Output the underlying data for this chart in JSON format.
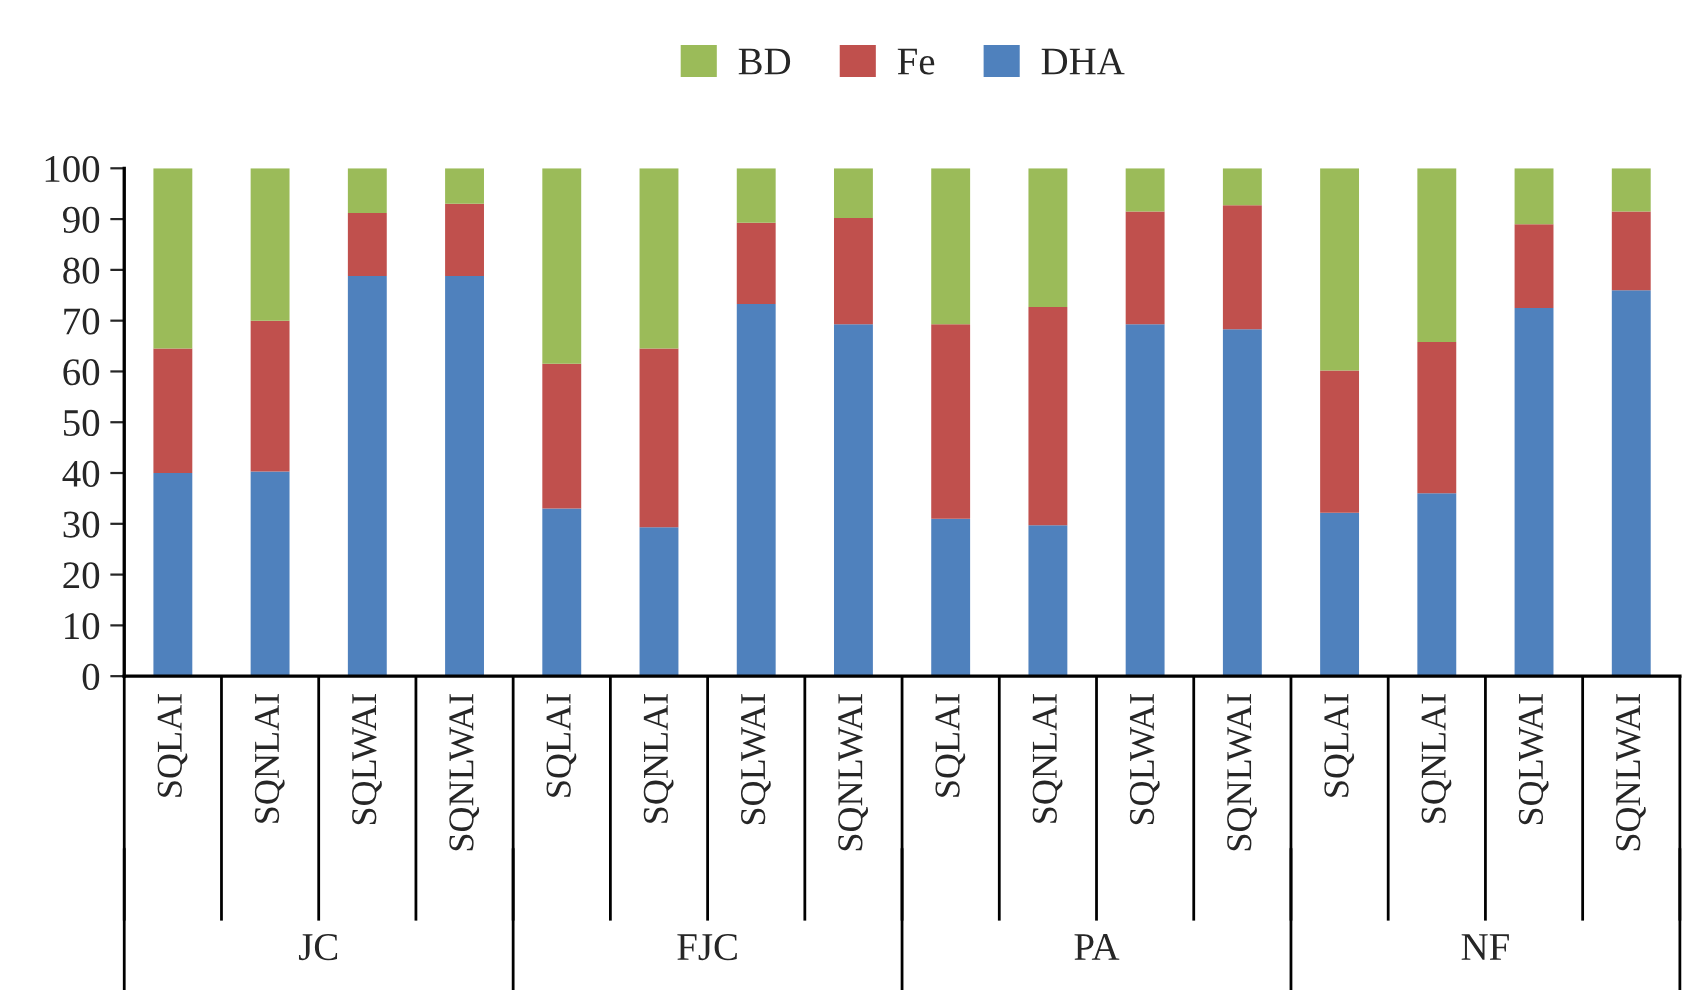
{
  "chart_data": {
    "type": "bar",
    "stacked": true,
    "categories": [
      "SQLAI",
      "SQNLAI",
      "SQLWAI",
      "SQNLWAI",
      "SQLAI",
      "SQNLAI",
      "SQLWAI",
      "SQNLWAI",
      "SQLAI",
      "SQNLAI",
      "SQLWAI",
      "SQNLWAI",
      "SQLAI",
      "SQNLAI",
      "SQLWAI",
      "SQNLWAI"
    ],
    "series": [
      {
        "name": "DHA",
        "color": "#4f81bd",
        "values": [
          40.0,
          40.3,
          78.8,
          78.8,
          33.0,
          29.3,
          73.3,
          69.3,
          31.0,
          29.7,
          69.3,
          68.3,
          32.2,
          36.0,
          72.5,
          76.0
        ]
      },
      {
        "name": "Fe",
        "color": "#c0504d",
        "values": [
          24.5,
          29.7,
          12.4,
          14.2,
          28.5,
          35.2,
          16.0,
          20.9,
          38.3,
          43.0,
          22.2,
          24.4,
          28.0,
          29.8,
          16.5,
          15.5
        ]
      },
      {
        "name": "BD",
        "color": "#9bbb59",
        "values": [
          35.5,
          30.0,
          8.8,
          7.0,
          38.5,
          35.5,
          10.7,
          9.8,
          30.7,
          27.3,
          8.5,
          7.3,
          39.8,
          34.2,
          11.0,
          8.5
        ]
      }
    ],
    "annotations": [
      "JC",
      "FJC",
      "PA",
      "NF"
    ],
    "ylim": [
      0,
      100
    ],
    "yticks": [
      0,
      10,
      20,
      30,
      40,
      50,
      60,
      70,
      80,
      90,
      100
    ],
    "grid": false,
    "legend": "top"
  }
}
